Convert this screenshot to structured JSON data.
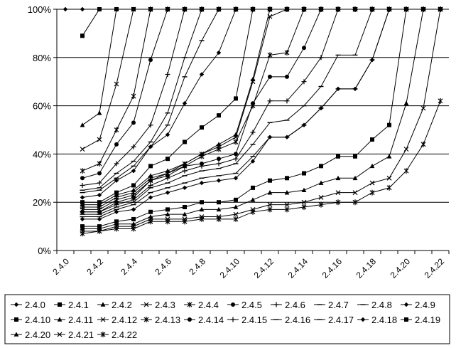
{
  "chart_data": {
    "type": "line",
    "title": "",
    "xlabel": "",
    "ylabel": "",
    "ylim": [
      0,
      100
    ],
    "y_ticks": [
      "0%",
      "20%",
      "40%",
      "60%",
      "80%",
      "100%"
    ],
    "x_ticks": [
      "2.4.0",
      "2.4.2",
      "2.4.4",
      "2.4.6",
      "2.4.8",
      "2.4.10",
      "2.4.12",
      "2.4.14",
      "2.4.16",
      "2.4.18",
      "2.4.20",
      "2.4.22"
    ],
    "grid": "horizontal",
    "legend_position": "bottom",
    "categories": [
      "2.4.0",
      "2.4.1",
      "2.4.2",
      "2.4.3",
      "2.4.4",
      "2.4.5",
      "2.4.6",
      "2.4.7",
      "2.4.8",
      "2.4.9",
      "2.4.10",
      "2.4.11",
      "2.4.12",
      "2.4.13",
      "2.4.14",
      "2.4.15",
      "2.4.16",
      "2.4.17",
      "2.4.18",
      "2.4.19",
      "2.4.20",
      "2.4.21",
      "2.4.22"
    ],
    "series": [
      {
        "name": "2.4.0",
        "marker": "diamond",
        "values": [
          100,
          100,
          100,
          100,
          100,
          100,
          100,
          100,
          100,
          100,
          100,
          100,
          100,
          100,
          100,
          100,
          100,
          100,
          100,
          100,
          100,
          100,
          100
        ]
      },
      {
        "name": "2.4.1",
        "marker": "square",
        "values": [
          null,
          89,
          100,
          100,
          100,
          100,
          100,
          100,
          100,
          100,
          100,
          100,
          100,
          100,
          100,
          100,
          100,
          100,
          100,
          100,
          100,
          100,
          100
        ]
      },
      {
        "name": "2.4.2",
        "marker": "triangle",
        "values": [
          null,
          52,
          57,
          100,
          100,
          100,
          100,
          100,
          100,
          100,
          100,
          100,
          100,
          100,
          100,
          100,
          100,
          100,
          100,
          100,
          100,
          100,
          100
        ]
      },
      {
        "name": "2.4.3",
        "marker": "x",
        "values": [
          null,
          42,
          46,
          69,
          100,
          100,
          100,
          100,
          100,
          100,
          100,
          100,
          100,
          100,
          100,
          100,
          100,
          100,
          100,
          100,
          100,
          100,
          100
        ]
      },
      {
        "name": "2.4.4",
        "marker": "star",
        "values": [
          null,
          33,
          36,
          50,
          64,
          100,
          100,
          100,
          100,
          100,
          100,
          100,
          100,
          100,
          100,
          100,
          100,
          100,
          100,
          100,
          100,
          100,
          100
        ]
      },
      {
        "name": "2.4.5",
        "marker": "circle",
        "values": [
          null,
          30,
          32,
          44,
          53,
          79,
          100,
          100,
          100,
          100,
          100,
          100,
          100,
          100,
          100,
          100,
          100,
          100,
          100,
          100,
          100,
          100,
          100
        ]
      },
      {
        "name": "2.4.6",
        "marker": "plus",
        "values": [
          null,
          27,
          28,
          36,
          43,
          52,
          73,
          100,
          100,
          100,
          100,
          100,
          100,
          100,
          100,
          100,
          100,
          100,
          100,
          100,
          100,
          100,
          100
        ]
      },
      {
        "name": "2.4.7",
        "marker": "dash",
        "values": [
          null,
          25,
          26,
          32,
          37,
          45,
          57,
          80,
          100,
          100,
          100,
          100,
          100,
          100,
          100,
          100,
          100,
          100,
          100,
          100,
          100,
          100,
          100
        ]
      },
      {
        "name": "2.4.8",
        "marker": "dash",
        "values": [
          null,
          24,
          25,
          30,
          35,
          43,
          52,
          72,
          87,
          100,
          100,
          100,
          100,
          100,
          100,
          100,
          100,
          100,
          100,
          100,
          100,
          100,
          100
        ]
      },
      {
        "name": "2.4.9",
        "marker": "diamond",
        "values": [
          null,
          22,
          23,
          29,
          33,
          43,
          48,
          61,
          73,
          82,
          100,
          100,
          100,
          100,
          100,
          100,
          100,
          100,
          100,
          100,
          100,
          100,
          100
        ]
      },
      {
        "name": "2.4.10",
        "marker": "square",
        "values": [
          null,
          20,
          20,
          24,
          27,
          35,
          38,
          45,
          51,
          56,
          63,
          100,
          100,
          100,
          100,
          100,
          100,
          100,
          100,
          100,
          100,
          100,
          100
        ]
      },
      {
        "name": "2.4.11",
        "marker": "triangle",
        "values": [
          null,
          19,
          19,
          23,
          25,
          31,
          33,
          36,
          40,
          44,
          48,
          71,
          100,
          100,
          100,
          100,
          100,
          100,
          100,
          100,
          100,
          100,
          100
        ]
      },
      {
        "name": "2.4.12",
        "marker": "x",
        "values": [
          null,
          18,
          18,
          22,
          24,
          30,
          32,
          36,
          40,
          43,
          47,
          70,
          97,
          100,
          100,
          100,
          100,
          100,
          100,
          100,
          100,
          100,
          100
        ]
      },
      {
        "name": "2.4.13",
        "marker": "star",
        "values": [
          null,
          17,
          17,
          21,
          23,
          29,
          32,
          35,
          39,
          42,
          45,
          60,
          81,
          82,
          100,
          100,
          100,
          100,
          100,
          100,
          100,
          100,
          100
        ]
      },
      {
        "name": "2.4.14",
        "marker": "circle",
        "values": [
          null,
          16,
          16,
          20,
          22,
          29,
          31,
          35,
          36,
          38,
          40,
          61,
          72,
          72,
          84,
          100,
          100,
          100,
          100,
          100,
          100,
          100,
          100
        ]
      },
      {
        "name": "2.4.15",
        "marker": "plus",
        "values": [
          null,
          16,
          16,
          19,
          21,
          27,
          30,
          33,
          35,
          36,
          38,
          49,
          62,
          62,
          70,
          80,
          100,
          100,
          100,
          100,
          100,
          100,
          100
        ]
      },
      {
        "name": "2.4.16",
        "marker": "dash",
        "values": [
          null,
          15,
          15,
          18,
          20,
          26,
          28,
          31,
          33,
          34,
          36,
          44,
          53,
          54,
          60,
          68,
          81,
          81,
          100,
          100,
          100,
          100,
          100
        ]
      },
      {
        "name": "2.4.17",
        "marker": "dash",
        "values": [
          null,
          14,
          14,
          17,
          19,
          24,
          26,
          28,
          30,
          31,
          32,
          39,
          47,
          47,
          52,
          59,
          67,
          67,
          79,
          100,
          100,
          100,
          100
        ]
      },
      {
        "name": "2.4.18",
        "marker": "diamond",
        "values": [
          null,
          13,
          13,
          16,
          17,
          22,
          24,
          26,
          28,
          29,
          30,
          37,
          47,
          47,
          52,
          59,
          67,
          67,
          79,
          100,
          100,
          100,
          100
        ]
      },
      {
        "name": "2.4.19",
        "marker": "square",
        "values": [
          null,
          10,
          10,
          12,
          13,
          16,
          17,
          18,
          20,
          20,
          21,
          26,
          29,
          30,
          32,
          35,
          39,
          39,
          46,
          52,
          100,
          100,
          100
        ]
      },
      {
        "name": "2.4.20",
        "marker": "triangle",
        "values": [
          null,
          9,
          9,
          11,
          11,
          14,
          15,
          15,
          17,
          17,
          18,
          21,
          24,
          24,
          25,
          28,
          30,
          30,
          35,
          39,
          61,
          100,
          100
        ]
      },
      {
        "name": "2.4.21",
        "marker": "x",
        "values": [
          null,
          8,
          8,
          10,
          10,
          13,
          13,
          13,
          14,
          14,
          15,
          17,
          19,
          19,
          20,
          22,
          24,
          24,
          28,
          30,
          42,
          59,
          100
        ]
      },
      {
        "name": "2.4.22",
        "marker": "star",
        "values": [
          null,
          7,
          8,
          9,
          9,
          12,
          12,
          12,
          13,
          13,
          13,
          16,
          17,
          17,
          18,
          19,
          20,
          20,
          24,
          26,
          33,
          44,
          62
        ]
      }
    ]
  }
}
